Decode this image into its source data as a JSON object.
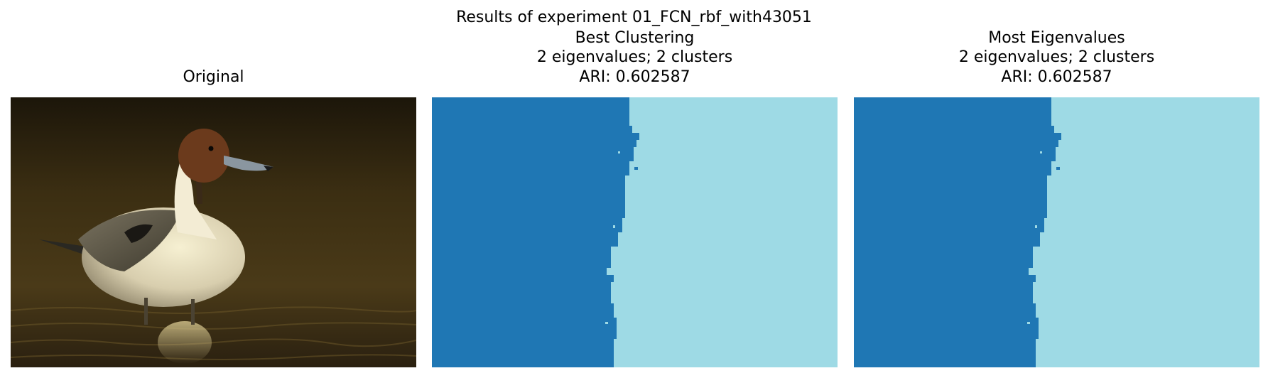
{
  "figure": {
    "title": "Results of experiment 01_FCN_rbf_with43051"
  },
  "panels": [
    {
      "id": "original",
      "title_lines": [
        "Original"
      ],
      "content": "photo of a pintail duck standing in water"
    },
    {
      "id": "best",
      "title_lines": [
        "Best Clustering",
        "2 eigenvalues; 2 clusters",
        "ARI: 0.602587"
      ],
      "content": "two-cluster segmentation map"
    },
    {
      "id": "most",
      "title_lines": [
        "Most Eigenvalues",
        "2 eigenvalues; 2 clusters",
        "ARI: 0.602587"
      ],
      "content": "two-cluster segmentation map"
    }
  ],
  "colors": {
    "cluster_dark": "#1f77b4",
    "cluster_light": "#9edae5",
    "photo_background": "#3b2e12",
    "duck_head": "#6b3a1c",
    "duck_body": "#e8e0c8"
  }
}
